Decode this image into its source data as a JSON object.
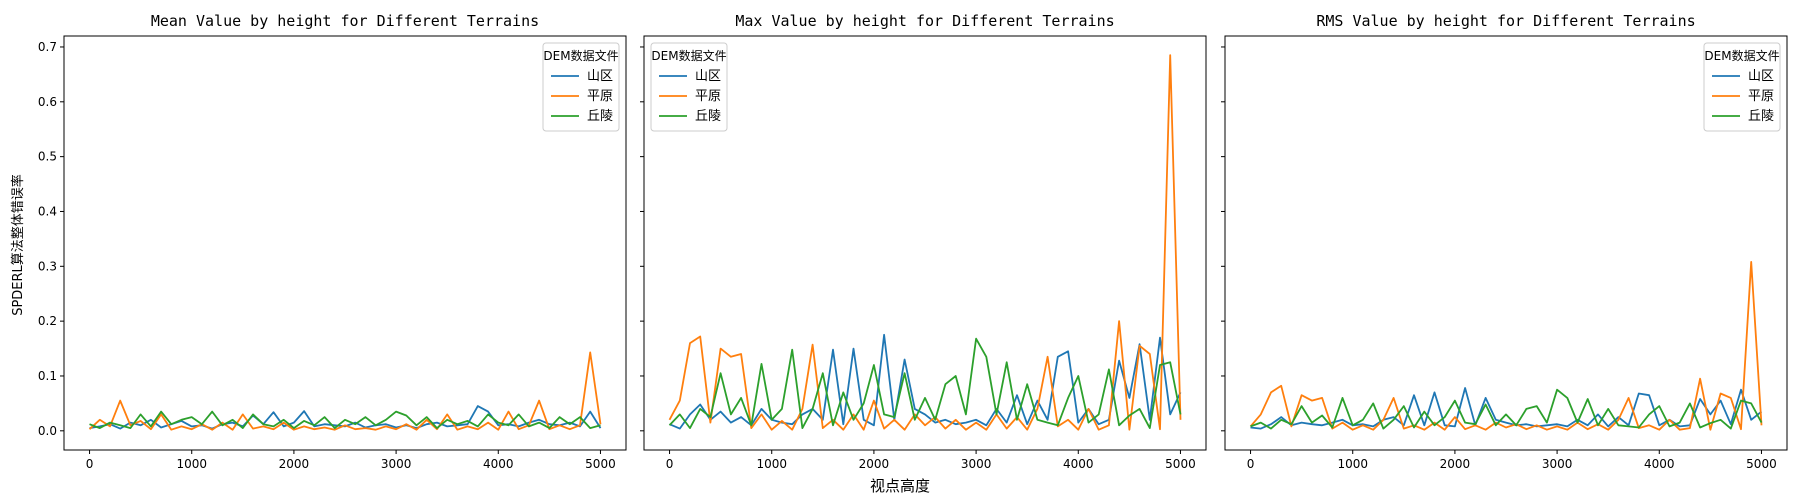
{
  "figure": {
    "xlabel": "视点高度",
    "ylabel": "SPDERL算法整体错误率"
  },
  "chart_data": [
    {
      "type": "line",
      "title": "Mean Value by height for Different Terrains",
      "xlim": [
        -250,
        5250
      ],
      "ylim": [
        -0.035,
        0.72
      ],
      "xticks": [
        0,
        1000,
        2000,
        3000,
        4000,
        5000
      ],
      "yticks": [
        0.0,
        0.1,
        0.2,
        0.3,
        0.4,
        0.5,
        0.6,
        0.7
      ],
      "legend": {
        "title": "DEM数据文件",
        "position": "upper right"
      },
      "x": [
        0,
        100,
        200,
        300,
        400,
        500,
        600,
        700,
        800,
        900,
        1000,
        1100,
        1200,
        1300,
        1400,
        1500,
        1600,
        1700,
        1800,
        1900,
        2000,
        2100,
        2200,
        2300,
        2400,
        2500,
        2600,
        2700,
        2800,
        2900,
        3000,
        3100,
        3200,
        3300,
        3400,
        3500,
        3600,
        3700,
        3800,
        3900,
        4000,
        4100,
        4200,
        4300,
        4400,
        4500,
        4600,
        4700,
        4800,
        4900,
        5000
      ],
      "series": [
        {
          "name": "山区",
          "color": "#1f77b4",
          "values": [
            0.005,
            0.008,
            0.012,
            0.004,
            0.015,
            0.01,
            0.02,
            0.006,
            0.012,
            0.018,
            0.008,
            0.01,
            0.004,
            0.012,
            0.015,
            0.008,
            0.028,
            0.012,
            0.034,
            0.008,
            0.015,
            0.036,
            0.008,
            0.012,
            0.01,
            0.008,
            0.015,
            0.006,
            0.01,
            0.012,
            0.006,
            0.01,
            0.005,
            0.012,
            0.015,
            0.008,
            0.01,
            0.012,
            0.045,
            0.035,
            0.01,
            0.012,
            0.008,
            0.015,
            0.02,
            0.012,
            0.01,
            0.015,
            0.008,
            0.035,
            0.005
          ]
        },
        {
          "name": "平原",
          "color": "#ff7f0e",
          "values": [
            0.003,
            0.02,
            0.008,
            0.055,
            0.01,
            0.018,
            0.003,
            0.03,
            0.002,
            0.008,
            0.003,
            0.012,
            0.002,
            0.015,
            0.002,
            0.03,
            0.004,
            0.008,
            0.003,
            0.015,
            0.002,
            0.008,
            0.003,
            0.006,
            0.002,
            0.01,
            0.003,
            0.005,
            0.002,
            0.008,
            0.003,
            0.012,
            0.002,
            0.02,
            0.003,
            0.03,
            0.002,
            0.008,
            0.003,
            0.015,
            0.002,
            0.035,
            0.003,
            0.01,
            0.055,
            0.003,
            0.01,
            0.003,
            0.01,
            0.143,
            0.012
          ]
        },
        {
          "name": "丘陵",
          "color": "#2ca02c",
          "values": [
            0.012,
            0.005,
            0.015,
            0.01,
            0.005,
            0.03,
            0.008,
            0.035,
            0.012,
            0.02,
            0.025,
            0.012,
            0.035,
            0.01,
            0.02,
            0.005,
            0.03,
            0.012,
            0.008,
            0.02,
            0.005,
            0.018,
            0.01,
            0.025,
            0.005,
            0.02,
            0.012,
            0.025,
            0.01,
            0.02,
            0.035,
            0.028,
            0.01,
            0.025,
            0.005,
            0.02,
            0.012,
            0.018,
            0.008,
            0.03,
            0.015,
            0.01,
            0.03,
            0.008,
            0.015,
            0.005,
            0.025,
            0.012,
            0.025,
            0.005,
            0.01
          ]
        }
      ]
    },
    {
      "type": "line",
      "title": "Max Value by height for Different Terrains",
      "xlim": [
        -250,
        5250
      ],
      "ylim": [
        -0.035,
        0.72
      ],
      "xticks": [
        0,
        1000,
        2000,
        3000,
        4000,
        5000
      ],
      "yticks": [
        0.0,
        0.1,
        0.2,
        0.3,
        0.4,
        0.5,
        0.6,
        0.7
      ],
      "legend": {
        "title": "DEM数据文件",
        "position": "upper left"
      },
      "x": [
        0,
        100,
        200,
        300,
        400,
        500,
        600,
        700,
        800,
        900,
        1000,
        1100,
        1200,
        1300,
        1400,
        1500,
        1600,
        1700,
        1800,
        1900,
        2000,
        2100,
        2200,
        2300,
        2400,
        2500,
        2600,
        2700,
        2800,
        2900,
        3000,
        3100,
        3200,
        3300,
        3400,
        3500,
        3600,
        3700,
        3800,
        3900,
        4000,
        4100,
        4200,
        4300,
        4400,
        4500,
        4600,
        4700,
        4800,
        4900,
        5000
      ],
      "series": [
        {
          "name": "山区",
          "color": "#1f77b4",
          "values": [
            0.012,
            0.004,
            0.03,
            0.048,
            0.02,
            0.035,
            0.015,
            0.025,
            0.01,
            0.04,
            0.02,
            0.015,
            0.012,
            0.03,
            0.04,
            0.02,
            0.148,
            0.012,
            0.15,
            0.02,
            0.01,
            0.175,
            0.02,
            0.13,
            0.04,
            0.03,
            0.015,
            0.02,
            0.012,
            0.015,
            0.02,
            0.01,
            0.04,
            0.015,
            0.065,
            0.012,
            0.055,
            0.02,
            0.135,
            0.145,
            0.015,
            0.04,
            0.012,
            0.02,
            0.128,
            0.06,
            0.158,
            0.02,
            0.17,
            0.03,
            0.07
          ]
        },
        {
          "name": "平原",
          "color": "#ff7f0e",
          "values": [
            0.02,
            0.055,
            0.16,
            0.172,
            0.015,
            0.15,
            0.135,
            0.14,
            0.005,
            0.03,
            0.002,
            0.018,
            0.002,
            0.04,
            0.157,
            0.005,
            0.02,
            0.002,
            0.03,
            0.002,
            0.055,
            0.004,
            0.02,
            0.002,
            0.03,
            0.01,
            0.025,
            0.004,
            0.02,
            0.002,
            0.015,
            0.002,
            0.03,
            0.004,
            0.025,
            0.002,
            0.04,
            0.135,
            0.008,
            0.02,
            0.002,
            0.04,
            0.002,
            0.01,
            0.2,
            0.002,
            0.155,
            0.14,
            0.003,
            0.685,
            0.02
          ]
        },
        {
          "name": "丘陵",
          "color": "#2ca02c",
          "values": [
            0.01,
            0.03,
            0.005,
            0.04,
            0.025,
            0.105,
            0.03,
            0.06,
            0.01,
            0.122,
            0.02,
            0.04,
            0.148,
            0.005,
            0.04,
            0.105,
            0.01,
            0.07,
            0.02,
            0.05,
            0.12,
            0.03,
            0.025,
            0.105,
            0.02,
            0.06,
            0.02,
            0.085,
            0.1,
            0.03,
            0.168,
            0.135,
            0.03,
            0.125,
            0.02,
            0.085,
            0.02,
            0.015,
            0.01,
            0.06,
            0.1,
            0.015,
            0.03,
            0.112,
            0.01,
            0.028,
            0.04,
            0.005,
            0.12,
            0.125,
            0.03
          ]
        }
      ]
    },
    {
      "type": "line",
      "title": "RMS Value by height for Different Terrains",
      "xlim": [
        -250,
        5250
      ],
      "ylim": [
        -0.035,
        0.72
      ],
      "xticks": [
        0,
        1000,
        2000,
        3000,
        4000,
        5000
      ],
      "yticks": [
        0.0,
        0.1,
        0.2,
        0.3,
        0.4,
        0.5,
        0.6,
        0.7
      ],
      "legend": {
        "title": "DEM数据文件",
        "position": "upper right"
      },
      "x": [
        0,
        100,
        200,
        300,
        400,
        500,
        600,
        700,
        800,
        900,
        1000,
        1100,
        1200,
        1300,
        1400,
        1500,
        1600,
        1700,
        1800,
        1900,
        2000,
        2100,
        2200,
        2300,
        2400,
        2500,
        2600,
        2700,
        2800,
        2900,
        3000,
        3100,
        3200,
        3300,
        3400,
        3500,
        3600,
        3700,
        3800,
        3900,
        4000,
        4100,
        4200,
        4300,
        4400,
        4500,
        4600,
        4700,
        4800,
        4900,
        5000
      ],
      "series": [
        {
          "name": "山区",
          "color": "#1f77b4",
          "values": [
            0.006,
            0.004,
            0.012,
            0.025,
            0.01,
            0.015,
            0.012,
            0.01,
            0.015,
            0.02,
            0.01,
            0.012,
            0.008,
            0.02,
            0.025,
            0.01,
            0.065,
            0.01,
            0.07,
            0.01,
            0.008,
            0.078,
            0.01,
            0.06,
            0.02,
            0.015,
            0.01,
            0.012,
            0.008,
            0.01,
            0.012,
            0.008,
            0.02,
            0.01,
            0.03,
            0.008,
            0.025,
            0.01,
            0.068,
            0.065,
            0.01,
            0.02,
            0.008,
            0.01,
            0.058,
            0.03,
            0.055,
            0.012,
            0.075,
            0.02,
            0.035
          ]
        },
        {
          "name": "平原",
          "color": "#ff7f0e",
          "values": [
            0.008,
            0.03,
            0.07,
            0.082,
            0.008,
            0.065,
            0.055,
            0.06,
            0.004,
            0.015,
            0.002,
            0.01,
            0.002,
            0.02,
            0.06,
            0.004,
            0.01,
            0.002,
            0.015,
            0.002,
            0.025,
            0.003,
            0.01,
            0.002,
            0.015,
            0.006,
            0.012,
            0.003,
            0.01,
            0.002,
            0.008,
            0.002,
            0.015,
            0.003,
            0.012,
            0.002,
            0.02,
            0.06,
            0.005,
            0.01,
            0.002,
            0.02,
            0.002,
            0.005,
            0.095,
            0.002,
            0.068,
            0.06,
            0.003,
            0.308,
            0.01
          ]
        },
        {
          "name": "丘陵",
          "color": "#2ca02c",
          "values": [
            0.008,
            0.015,
            0.004,
            0.02,
            0.012,
            0.045,
            0.015,
            0.028,
            0.006,
            0.06,
            0.01,
            0.02,
            0.05,
            0.004,
            0.02,
            0.045,
            0.006,
            0.035,
            0.01,
            0.025,
            0.055,
            0.015,
            0.012,
            0.048,
            0.01,
            0.03,
            0.01,
            0.04,
            0.045,
            0.015,
            0.075,
            0.06,
            0.015,
            0.058,
            0.01,
            0.04,
            0.01,
            0.008,
            0.006,
            0.03,
            0.045,
            0.008,
            0.015,
            0.05,
            0.006,
            0.014,
            0.02,
            0.004,
            0.055,
            0.05,
            0.015
          ]
        }
      ]
    }
  ]
}
